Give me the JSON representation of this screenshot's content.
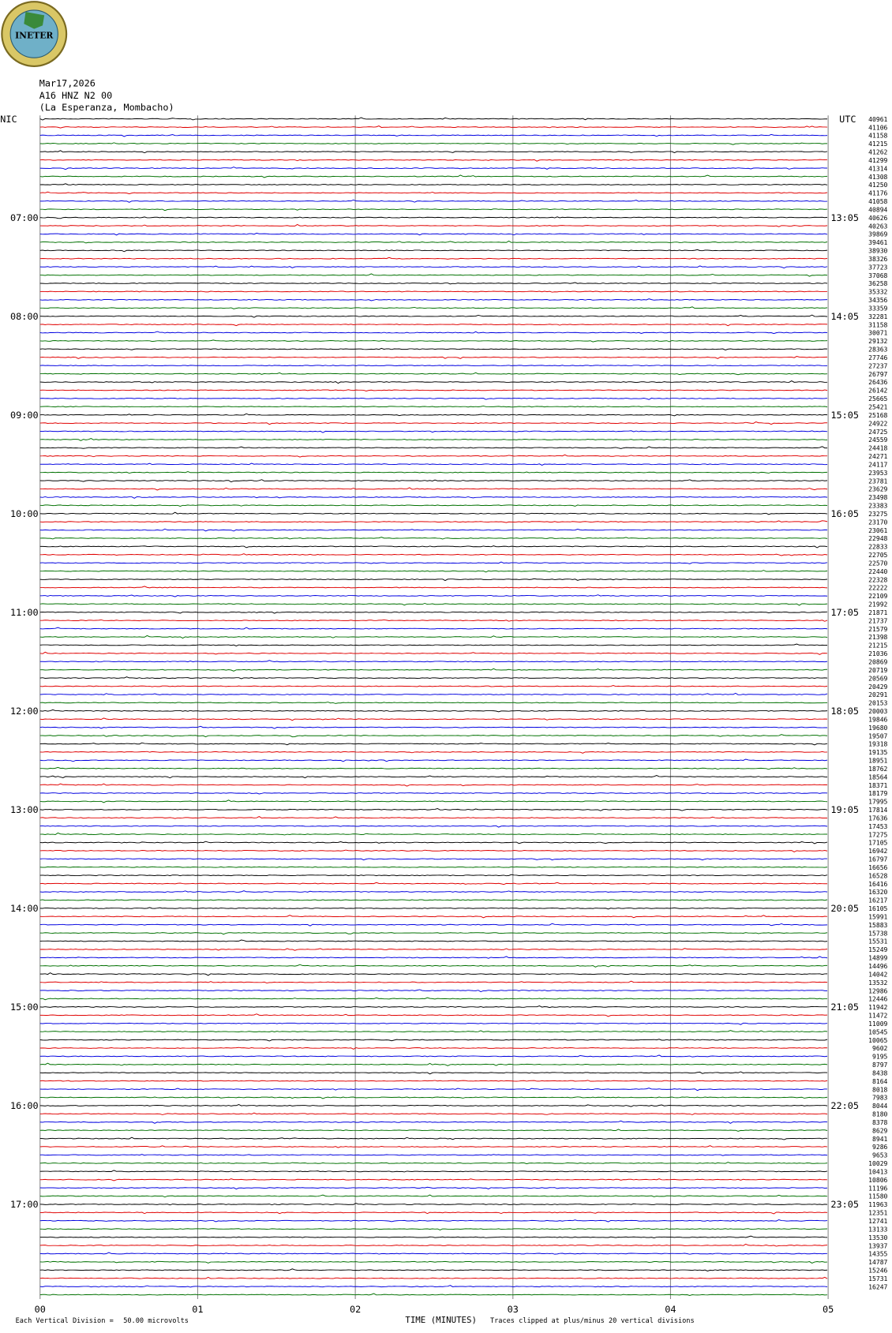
{
  "logo": {
    "text": "INETER"
  },
  "header": {
    "date": "Mar17,2026",
    "station": "A16 HNZ N2 00",
    "location": "(La Esperanza, Mombacho)",
    "left_zone": "NIC",
    "right_zone": "UTC"
  },
  "left_time_labels": [
    "07:00",
    "08:00",
    "09:00",
    "10:00",
    "11:00",
    "12:00",
    "13:00",
    "14:00",
    "15:00",
    "16:00",
    "17:00"
  ],
  "right_time_labels": [
    "13:05",
    "14:05",
    "15:05",
    "16:05",
    "17:05",
    "18:05",
    "19:05",
    "20:05",
    "21:05",
    "22:05",
    "23:05"
  ],
  "trace_labels": [
    "40961",
    "41106",
    "41158",
    "41215",
    "41262",
    "41299",
    "41314",
    "41308",
    "41250",
    "41176",
    "41058",
    "40894",
    "40626",
    "40263",
    "39869",
    "39461",
    "38930",
    "38326",
    "37723",
    "37068",
    "36258",
    "35332",
    "34356",
    "33359",
    "32281",
    "31158",
    "30071",
    "29132",
    "28363",
    "27746",
    "27237",
    "26797",
    "26436",
    "26142",
    "25665",
    "25421",
    "25168",
    "24922",
    "24725",
    "24559",
    "24418",
    "24271",
    "24117",
    "23953",
    "23781",
    "23629",
    "23498",
    "23383",
    "23275",
    "23170",
    "23061",
    "22948",
    "22833",
    "22705",
    "22570",
    "22440",
    "22328",
    "22222",
    "22109",
    "21992",
    "21871",
    "21737",
    "21579",
    "21398",
    "21215",
    "21036",
    "20869",
    "20719",
    "20569",
    "20429",
    "20291",
    "20153",
    "20003",
    "19846",
    "19680",
    "19507",
    "19318",
    "19135",
    "18951",
    "18762",
    "18564",
    "18371",
    "18179",
    "17995",
    "17814",
    "17636",
    "17453",
    "17275",
    "17105",
    "16942",
    "16797",
    "16656",
    "16528",
    "16416",
    "16320",
    "16217",
    "16105",
    "15991",
    "15883",
    "15738",
    "15531",
    "15249",
    "14899",
    "14496",
    "14042",
    "13532",
    "12986",
    "12446",
    "11942",
    "11472",
    "11009",
    "10545",
    "10065",
    "9602",
    "9195",
    "8797",
    "8438",
    "8164",
    "8018",
    "7983",
    "8044",
    "8180",
    "8378",
    "8629",
    "8941",
    "9286",
    "9653",
    "10029",
    "10413",
    "10806",
    "11196",
    "11580",
    "11963",
    "12351",
    "12741",
    "13133",
    "13530",
    "13937",
    "14355",
    "14787",
    "15246",
    "15731",
    "16247"
  ],
  "x_labels": [
    "00",
    "01",
    "02",
    "03",
    "04",
    "05"
  ],
  "footer": {
    "division_label": "Each Vertical Division =",
    "division_value": "50.00 microvolts",
    "axis_title": "TIME (MINUTES)",
    "clip_note": "Traces clipped at plus/minus 20 vertical divisions"
  }
}
